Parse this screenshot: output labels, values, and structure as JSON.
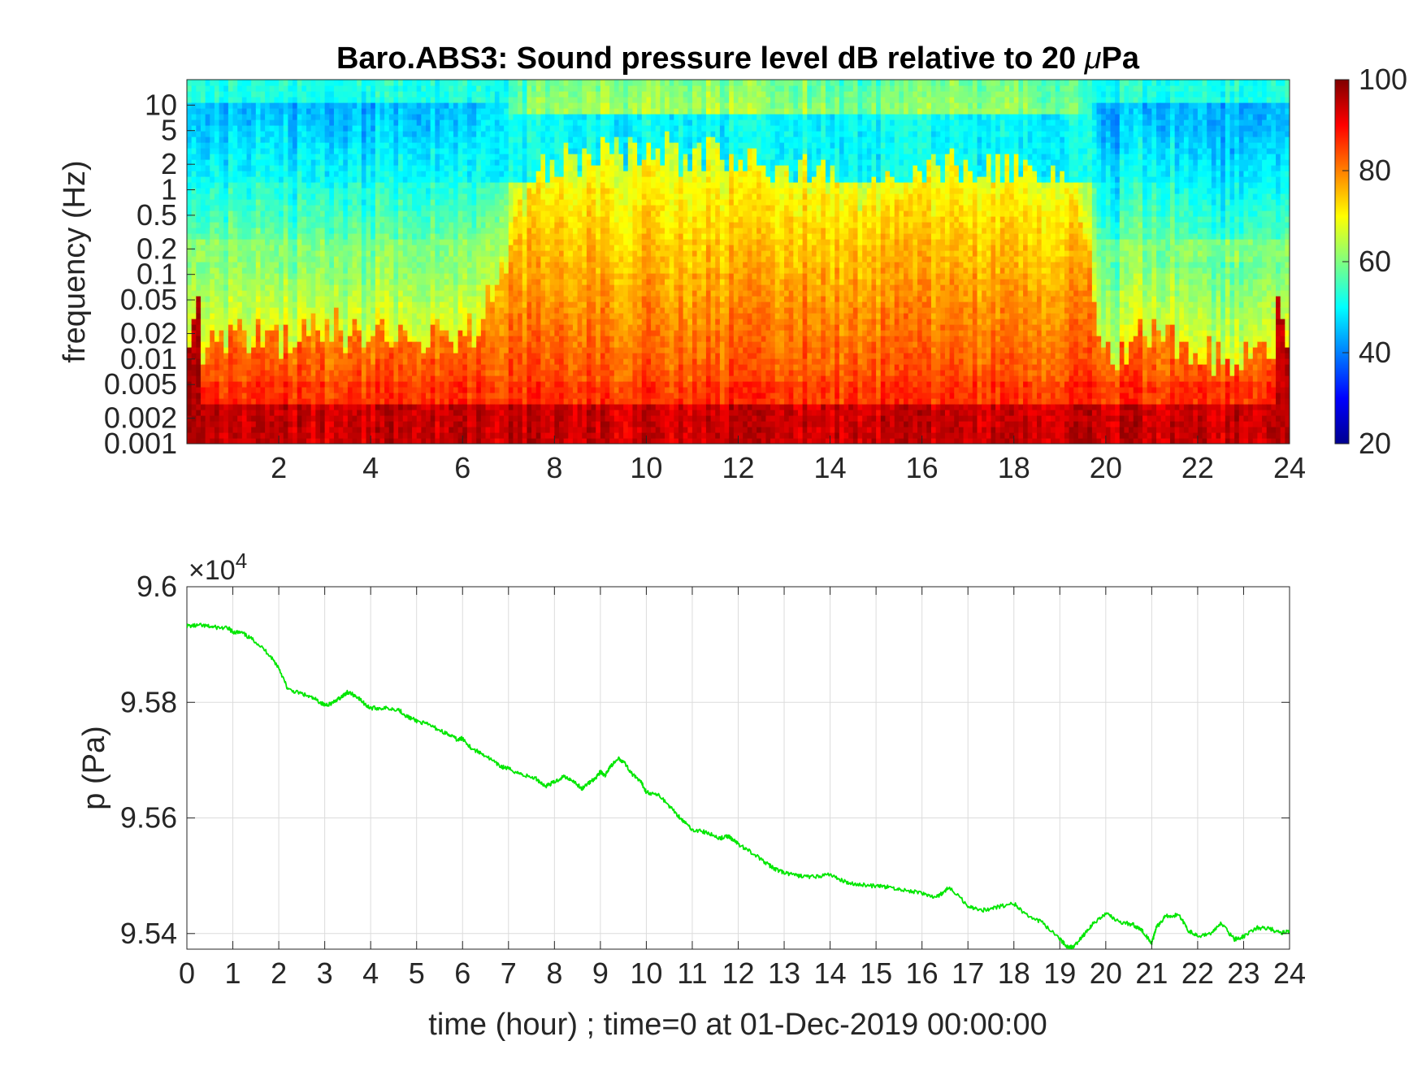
{
  "chart_data": [
    {
      "type": "heatmap",
      "title": "Baro.ABS3: Sound pressure level dB relative to 20 μPa",
      "title_parts": {
        "before": "Baro.ABS3: Sound pressure level dB relative to 20 ",
        "mu": "μ",
        "after": "Pa"
      },
      "ylabel": "frequency (Hz)",
      "xlabel": "",
      "x_scale": "linear",
      "y_scale": "log",
      "xlim": [
        0,
        24
      ],
      "ylim": [
        0.001,
        20
      ],
      "x_ticks": [
        2,
        4,
        6,
        8,
        10,
        12,
        14,
        16,
        18,
        20,
        22,
        24
      ],
      "y_ticks": [
        {
          "value": 0.001,
          "label": "0.001"
        },
        {
          "value": 0.002,
          "label": "0.002"
        },
        {
          "value": 0.005,
          "label": "0.005"
        },
        {
          "value": 0.01,
          "label": "0.01"
        },
        {
          "value": 0.02,
          "label": "0.02"
        },
        {
          "value": 0.05,
          "label": "0.05"
        },
        {
          "value": 0.1,
          "label": "0.1"
        },
        {
          "value": 0.2,
          "label": "0.2"
        },
        {
          "value": 0.5,
          "label": "0.5"
        },
        {
          "value": 1,
          "label": "1"
        },
        {
          "value": 2,
          "label": "2"
        },
        {
          "value": 5,
          "label": "5"
        },
        {
          "value": 10,
          "label": "10"
        }
      ],
      "colormap": "jet",
      "colorbar": {
        "min": 20,
        "max": 100,
        "ticks": [
          20,
          40,
          60,
          80,
          100
        ]
      },
      "activity_profile": {
        "hours": [
          0,
          1,
          2,
          3,
          4,
          5,
          6,
          6.8,
          7.5,
          8,
          9,
          10,
          11,
          12,
          13,
          14,
          15,
          16,
          17,
          18,
          19,
          19.5,
          20,
          21,
          22,
          23,
          24
        ],
        "upper_edge_log10_hz": [
          -1.9,
          -1.7,
          -1.8,
          -1.6,
          -1.8,
          -1.7,
          -1.8,
          -1.1,
          0.1,
          0.3,
          0.4,
          0.5,
          0.4,
          0.4,
          0.2,
          0.1,
          0.0,
          0.2,
          0.3,
          0.2,
          0.1,
          -0.5,
          -2.0,
          -1.6,
          -1.9,
          -2.0,
          -2.0
        ]
      },
      "grid": false
    },
    {
      "type": "line",
      "xlabel": "time (hour) ; time=0 at 01-Dec-2019 00:00:00",
      "ylabel": "p (Pa)",
      "y_multiplier": "×10",
      "y_multiplier_exponent": "4",
      "xlim": [
        0,
        24
      ],
      "ylim": [
        95373,
        96000
      ],
      "x_ticks": [
        0,
        1,
        2,
        3,
        4,
        5,
        6,
        7,
        8,
        9,
        10,
        11,
        12,
        13,
        14,
        15,
        16,
        17,
        18,
        19,
        20,
        21,
        22,
        23,
        24
      ],
      "y_ticks": [
        {
          "value": 95400,
          "label": "9.54"
        },
        {
          "value": 95600,
          "label": "9.56"
        },
        {
          "value": 95800,
          "label": "9.58"
        },
        {
          "value": 96000,
          "label": "9.6"
        }
      ],
      "grid": true,
      "series_color": "#00e600",
      "x": [
        0,
        0.3,
        0.6,
        0.9,
        1.0,
        1.2,
        1.5,
        1.8,
        2.0,
        2.2,
        2.5,
        2.8,
        3.0,
        3.2,
        3.4,
        3.5,
        3.7,
        3.9,
        4.0,
        4.3,
        4.6,
        4.8,
        5.0,
        5.3,
        5.6,
        5.9,
        6.0,
        6.2,
        6.5,
        6.8,
        7.0,
        7.3,
        7.6,
        7.8,
        8.0,
        8.2,
        8.4,
        8.6,
        8.7,
        8.9,
        9.0,
        9.1,
        9.2,
        9.4,
        9.5,
        9.7,
        9.9,
        10.0,
        10.3,
        10.6,
        10.8,
        11.0,
        11.3,
        11.6,
        11.8,
        12.0,
        12.3,
        12.6,
        12.8,
        13.0,
        13.3,
        13.6,
        14.0,
        14.3,
        14.6,
        15.0,
        15.3,
        15.6,
        16.0,
        16.3,
        16.4,
        16.6,
        17.0,
        17.3,
        17.6,
        18.0,
        18.3,
        18.6,
        19.0,
        19.2,
        19.3,
        19.5,
        19.7,
        20.0,
        20.3,
        20.6,
        20.8,
        21.0,
        21.1,
        21.3,
        21.6,
        21.8,
        22.0,
        22.3,
        22.5,
        22.8,
        23.0,
        23.3,
        23.6,
        23.8,
        24.0
      ],
      "values": [
        95932,
        95933,
        95930,
        95928,
        95922,
        95920,
        95905,
        95882,
        95860,
        95822,
        95815,
        95805,
        95795,
        95800,
        95812,
        95818,
        95810,
        95795,
        95790,
        95790,
        95788,
        95775,
        95768,
        95760,
        95748,
        95735,
        95738,
        95720,
        95708,
        95690,
        95685,
        95675,
        95668,
        95655,
        95662,
        95672,
        95665,
        95650,
        95658,
        95670,
        95680,
        95672,
        95688,
        95702,
        95698,
        95675,
        95660,
        95645,
        95638,
        95612,
        95595,
        95580,
        95575,
        95565,
        95568,
        95555,
        95540,
        95522,
        95512,
        95505,
        95500,
        95498,
        95502,
        95490,
        95485,
        95482,
        95480,
        95475,
        95470,
        95462,
        95468,
        95480,
        95448,
        95440,
        95445,
        95452,
        95430,
        95420,
        95390,
        95375,
        95378,
        95395,
        95415,
        95435,
        95420,
        95415,
        95405,
        95383,
        95410,
        95430,
        95432,
        95405,
        95395,
        95400,
        95418,
        95390,
        95395,
        95410,
        95408,
        95400,
        95405
      ]
    }
  ]
}
